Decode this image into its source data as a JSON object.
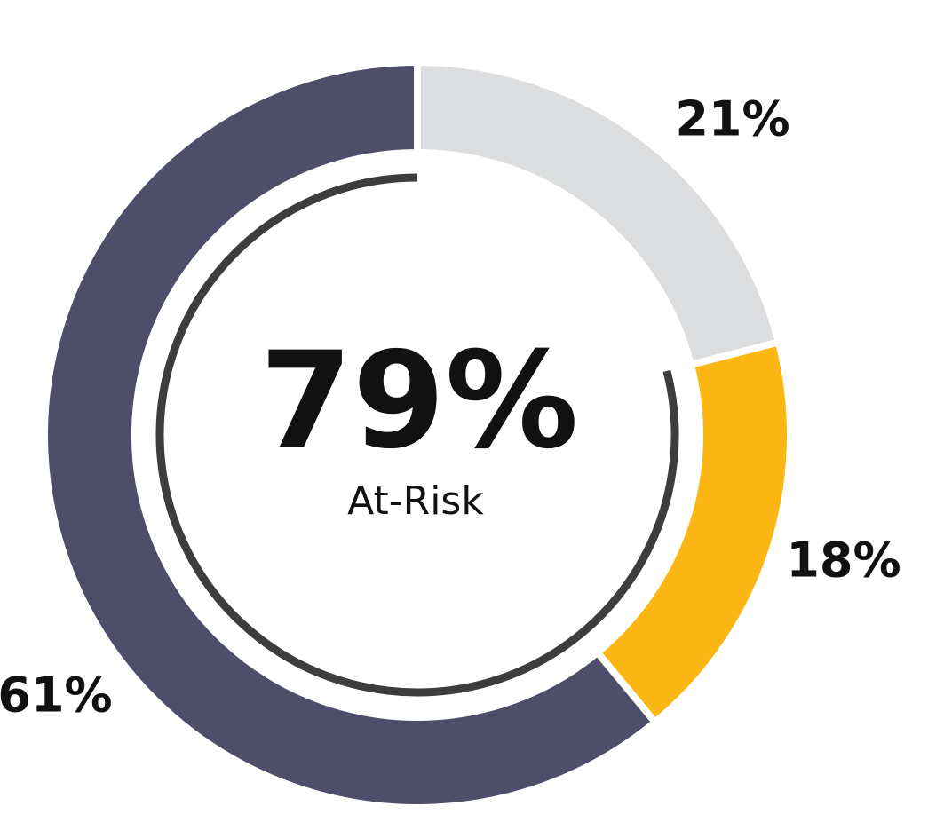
{
  "chart_data": {
    "type": "donut",
    "values": [
      21,
      18,
      61
    ],
    "value_labels": [
      "21%",
      "18%",
      "61%"
    ],
    "colors": [
      "#dcdddf",
      "#fdb714",
      "#4e4d6a"
    ],
    "total": {
      "value": 79,
      "label": "79%"
    },
    "total_caption": "At-Risk",
    "total_arc_color": "#3d3d3d"
  }
}
